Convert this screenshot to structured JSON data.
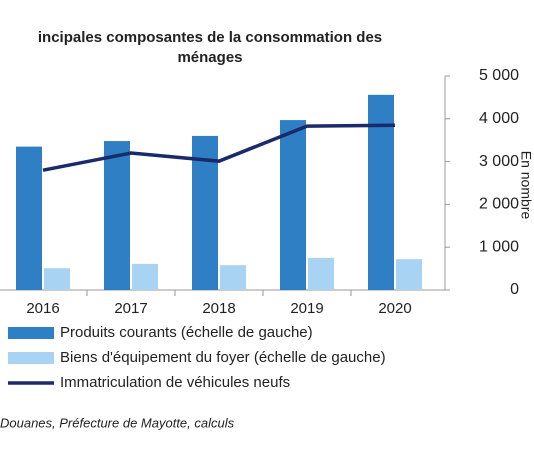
{
  "chart_data": {
    "type": "bar-line",
    "title": [
      "incipales composantes de la consommation des",
      "ménages"
    ],
    "y2_label": "En nombre",
    "source": "Douanes, Préfecture de Mayotte, calculs",
    "categories": [
      "2016",
      "2017",
      "2018",
      "2019",
      "2020"
    ],
    "series": [
      {
        "name": "Produits courants (échelle de gauche)",
        "kind": "bar",
        "color": "#2e7fc4",
        "values": [
          3350,
          3480,
          3600,
          3970,
          4560
        ]
      },
      {
        "name": "Biens d'équipement du foyer (échelle de gauche)",
        "kind": "bar",
        "color": "#a9d3f2",
        "values": [
          510,
          610,
          580,
          750,
          720
        ]
      },
      {
        "name": "Immatriculation de véhicules neufs",
        "kind": "line",
        "axis": "y2",
        "color": "#1b2a6b",
        "values": [
          2800,
          3200,
          3010,
          3830,
          3850
        ]
      }
    ],
    "y2lim": [
      0,
      5000
    ],
    "y2ticks": [
      {
        "value": 0,
        "label": "0"
      },
      {
        "value": 1000,
        "label": "1 000"
      },
      {
        "value": 2000,
        "label": "2 000"
      },
      {
        "value": 3000,
        "label": "3 000"
      },
      {
        "value": 4000,
        "label": "4 000"
      },
      {
        "value": 5000,
        "label": "5 000"
      }
    ]
  }
}
